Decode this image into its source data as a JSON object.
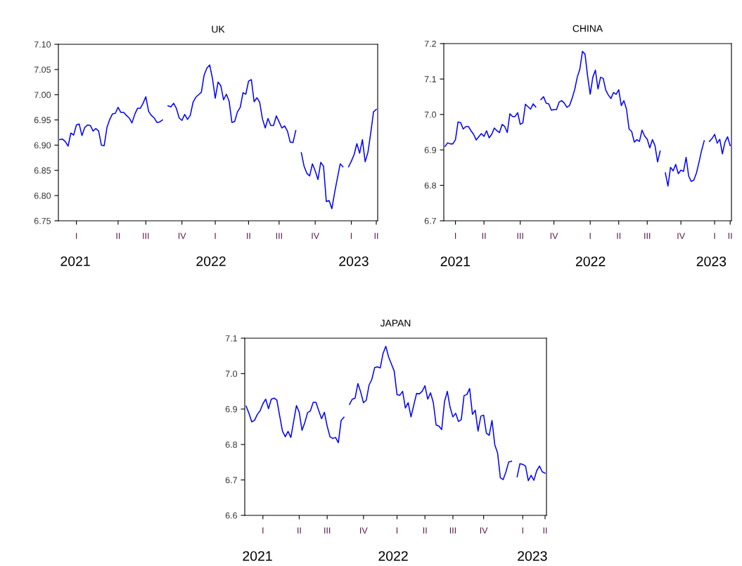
{
  "chart_data": [
    {
      "type": "line",
      "title": "UK",
      "annotations": [
        "2021",
        "2022",
        "2023"
      ],
      "ylim": [
        6.75,
        7.1
      ],
      "yticks": [
        {
          "value": 6.75,
          "label": "6.75"
        },
        {
          "value": 6.8,
          "label": "6.80"
        },
        {
          "value": 6.85,
          "label": "6.85"
        },
        {
          "value": 6.9,
          "label": "6.90"
        },
        {
          "value": 6.95,
          "label": "6.95"
        },
        {
          "value": 7.0,
          "label": "7.00"
        },
        {
          "value": 7.05,
          "label": "7.05"
        },
        {
          "value": 7.1,
          "label": "7.10"
        }
      ],
      "categories": [
        null,
        null,
        null,
        null,
        null,
        null,
        "I",
        null,
        null,
        null,
        null,
        null,
        null,
        null,
        null,
        null,
        null,
        null,
        null,
        null,
        null,
        "II",
        null,
        null,
        null,
        null,
        null,
        null,
        null,
        null,
        null,
        "III",
        null,
        null,
        null,
        null,
        null,
        null,
        null,
        null,
        null,
        null,
        null,
        null,
        "IV",
        null,
        null,
        null,
        null,
        null,
        null,
        null,
        null,
        null,
        null,
        null,
        "I",
        null,
        null,
        null,
        null,
        null,
        null,
        null,
        null,
        null,
        null,
        null,
        "II",
        null,
        null,
        null,
        null,
        null,
        null,
        null,
        null,
        null,
        null,
        "III",
        null,
        null,
        null,
        null,
        null,
        null,
        null,
        null,
        null,
        null,
        null,
        null,
        "IV",
        null,
        null,
        null,
        null,
        null,
        null,
        null,
        null,
        null,
        null,
        null,
        null,
        "I",
        null,
        null,
        null,
        null,
        null,
        null,
        null,
        null,
        "II"
      ],
      "grid": false,
      "marker": "none",
      "line_style": "solid",
      "series": [
        {
          "color": "#0000ff",
          "values": [
            6.911,
            6.912,
            6.907,
            6.898,
            6.924,
            6.92,
            6.94,
            6.942,
            6.919,
            6.935,
            6.94,
            6.939,
            6.928,
            6.933,
            6.928,
            6.9,
            6.899,
            6.935,
            6.951,
            6.962,
            6.963,
            6.975,
            6.965,
            6.965,
            6.959,
            6.954,
            6.944,
            6.961,
            6.973,
            6.973,
            6.983,
            6.996,
            6.967,
            6.959,
            6.954,
            6.945,
            6.946,
            6.95,
            null,
            6.978,
            6.976,
            6.983,
            6.973,
            6.954,
            6.949,
            6.961,
            6.951,
            6.959,
            6.985,
            6.995,
            7.0,
            7.005,
            7.039,
            7.053,
            7.059,
            7.032,
            6.993,
            7.025,
            7.018,
            6.99,
            7.001,
            6.987,
            6.945,
            6.947,
            6.966,
            6.975,
            7.004,
            7.001,
            7.027,
            7.03,
            6.986,
            6.994,
            6.985,
            6.952,
            6.934,
            6.953,
            6.939,
            6.939,
            6.958,
            6.946,
            6.934,
            6.938,
            6.928,
            6.906,
            6.905,
            6.929,
            null,
            6.885,
            6.858,
            6.844,
            6.839,
            6.863,
            6.849,
            6.832,
            6.866,
            6.858,
            6.788,
            6.79,
            6.774,
            6.806,
            6.835,
            6.863,
            6.857,
            null,
            6.857,
            6.868,
            6.881,
            6.903,
            6.884,
            6.911,
            6.867,
            6.886,
            6.924,
            6.966,
            6.971
          ]
        }
      ]
    },
    {
      "type": "line",
      "title": "CHINA",
      "annotations": [
        "2021",
        "2022",
        "2023"
      ],
      "ylim": [
        6.7,
        7.2
      ],
      "yticks": [
        {
          "value": 6.7,
          "label": "6.7"
        },
        {
          "value": 6.8,
          "label": "6.8"
        },
        {
          "value": 6.9,
          "label": "6.9"
        },
        {
          "value": 7.0,
          "label": "7.0"
        },
        {
          "value": 7.1,
          "label": "7.1"
        },
        {
          "value": 7.2,
          "label": "7.2"
        }
      ],
      "categories": [
        null,
        null,
        null,
        null,
        "I",
        null,
        null,
        null,
        null,
        null,
        null,
        null,
        null,
        null,
        null,
        "II",
        null,
        null,
        null,
        null,
        null,
        null,
        null,
        null,
        null,
        null,
        null,
        null,
        null,
        "III",
        null,
        null,
        null,
        null,
        null,
        null,
        null,
        null,
        null,
        null,
        null,
        null,
        "IV",
        null,
        null,
        null,
        null,
        null,
        null,
        null,
        null,
        null,
        null,
        null,
        null,
        null,
        "I",
        null,
        null,
        null,
        null,
        null,
        null,
        null,
        null,
        null,
        null,
        "II",
        null,
        null,
        null,
        null,
        null,
        null,
        null,
        null,
        null,
        null,
        "III",
        null,
        null,
        null,
        null,
        null,
        null,
        null,
        null,
        null,
        null,
        null,
        null,
        "IV",
        null,
        null,
        null,
        null,
        null,
        null,
        null,
        null,
        null,
        null,
        null,
        null,
        "I",
        null,
        null,
        null,
        null,
        null,
        "II"
      ],
      "grid": false,
      "marker": "none",
      "line_style": "solid",
      "series": [
        {
          "color": "#0000ff",
          "values": [
            6.91,
            6.92,
            6.917,
            6.917,
            6.929,
            6.979,
            6.977,
            6.959,
            6.966,
            6.966,
            6.954,
            6.944,
            6.928,
            6.937,
            6.946,
            6.938,
            6.954,
            6.934,
            6.944,
            6.962,
            6.954,
            6.949,
            6.972,
            6.966,
            6.949,
            7.002,
            6.994,
            6.994,
            7.005,
            6.972,
            6.976,
            7.029,
            7.022,
            7.015,
            7.03,
            7.021,
            null,
            7.042,
            7.05,
            7.032,
            7.03,
            7.012,
            7.014,
            7.014,
            7.035,
            7.039,
            7.032,
            7.02,
            7.025,
            7.045,
            7.07,
            7.105,
            7.128,
            7.178,
            7.17,
            7.108,
            7.057,
            7.105,
            7.125,
            7.072,
            7.105,
            7.102,
            7.069,
            7.055,
            7.045,
            7.062,
            7.057,
            7.07,
            7.025,
            7.039,
            7.015,
            6.959,
            6.952,
            6.922,
            6.929,
            6.924,
            6.956,
            6.939,
            6.93,
            6.906,
            6.929,
            6.912,
            6.866,
            6.897,
            null,
            6.835,
            6.798,
            6.851,
            6.841,
            6.859,
            6.833,
            6.843,
            6.839,
            6.879,
            6.826,
            6.811,
            6.815,
            6.835,
            6.866,
            6.899,
            6.926,
            null,
            6.924,
            6.932,
            6.944,
            6.919,
            6.93,
            6.889,
            6.922,
            6.937,
            6.912
          ]
        }
      ]
    },
    {
      "type": "line",
      "title": "JAPAN",
      "annotations": [
        "2021",
        "2022",
        "2023"
      ],
      "ylim": [
        6.6,
        7.1
      ],
      "yticks": [
        {
          "value": 6.6,
          "label": "6.6"
        },
        {
          "value": 6.7,
          "label": "6.7"
        },
        {
          "value": 6.8,
          "label": "6.8"
        },
        {
          "value": 6.9,
          "label": "6.9"
        },
        {
          "value": 7.0,
          "label": "7.0"
        },
        {
          "value": 7.1,
          "label": "7.1"
        }
      ],
      "categories": [
        null,
        null,
        null,
        null,
        null,
        null,
        "I",
        null,
        null,
        null,
        null,
        null,
        null,
        null,
        null,
        null,
        null,
        null,
        null,
        "II",
        null,
        null,
        null,
        null,
        null,
        null,
        null,
        null,
        null,
        "III",
        null,
        null,
        null,
        null,
        null,
        null,
        null,
        null,
        null,
        null,
        null,
        null,
        "IV",
        null,
        null,
        null,
        null,
        null,
        null,
        null,
        null,
        null,
        null,
        null,
        "I",
        null,
        null,
        null,
        null,
        null,
        null,
        null,
        null,
        null,
        "II",
        null,
        null,
        null,
        null,
        null,
        null,
        null,
        null,
        null,
        "III",
        null,
        null,
        null,
        null,
        null,
        null,
        null,
        null,
        null,
        null,
        "IV",
        null,
        null,
        null,
        null,
        null,
        null,
        null,
        null,
        null,
        null,
        null,
        null,
        null,
        "I",
        null,
        null,
        null,
        null,
        null,
        null,
        null,
        "II"
      ],
      "grid": false,
      "marker": "none",
      "line_style": "solid",
      "series": [
        {
          "color": "#0000ff",
          "values": [
            6.908,
            6.888,
            6.864,
            6.868,
            6.885,
            6.895,
            6.915,
            6.928,
            6.901,
            6.928,
            6.931,
            6.925,
            6.881,
            6.838,
            6.822,
            6.837,
            6.82,
            6.865,
            6.91,
            6.891,
            6.84,
            6.862,
            6.89,
            6.895,
            6.919,
            6.919,
            6.895,
            6.873,
            6.891,
            6.852,
            6.822,
            6.817,
            6.82,
            6.805,
            6.868,
            6.877,
            null,
            6.913,
            6.928,
            6.931,
            6.972,
            6.948,
            6.918,
            6.925,
            6.968,
            6.984,
            7.017,
            7.019,
            7.016,
            7.057,
            7.077,
            7.047,
            7.027,
            7.007,
            6.941,
            6.939,
            6.95,
            6.903,
            6.918,
            6.878,
            6.911,
            6.944,
            6.943,
            6.95,
            6.966,
            6.928,
            6.946,
            6.918,
            6.855,
            6.852,
            6.842,
            6.921,
            6.95,
            6.905,
            6.878,
            6.888,
            6.865,
            6.87,
            6.938,
            6.941,
            6.958,
            6.885,
            6.897,
            6.838,
            6.88,
            6.883,
            6.832,
            6.826,
            6.868,
            6.799,
            6.776,
            6.706,
            6.701,
            6.723,
            6.751,
            6.753,
            null,
            6.709,
            6.746,
            6.744,
            6.739,
            6.698,
            6.713,
            6.699,
            6.726,
            6.739,
            6.723,
            6.719
          ]
        }
      ]
    }
  ]
}
